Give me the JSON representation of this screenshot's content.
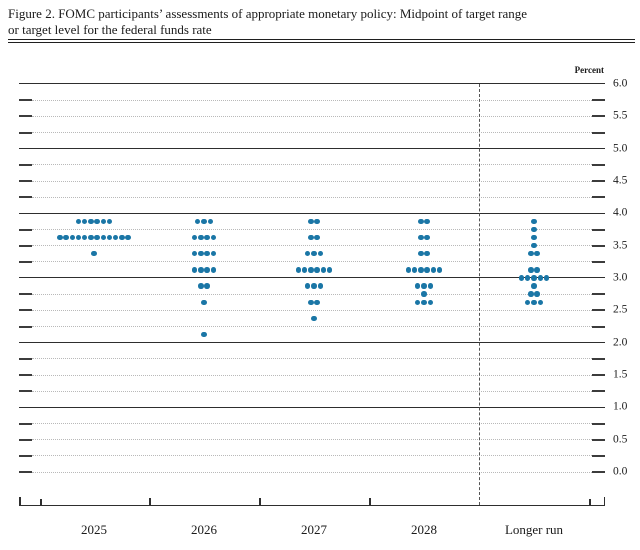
{
  "title": {
    "line1": "Figure 2. FOMC participants’ assessments of appropriate monetary policy: Midpoint of target range",
    "line2": "or target level for the federal funds rate"
  },
  "axis": {
    "unit_label": "Percent",
    "y_tick_labels": [
      "6.0",
      "5.5",
      "5.0",
      "4.5",
      "4.0",
      "3.5",
      "3.0",
      "2.5",
      "2.0",
      "1.5",
      "1.0",
      "0.5",
      "0.0"
    ],
    "x_labels": [
      "2025",
      "2026",
      "2027",
      "2028",
      "Longer run"
    ]
  },
  "colors": {
    "dot": "#1a76a6",
    "major_line": "#2e2e2e",
    "minor_line": "#b9b9b9",
    "edge_tick": "#3c3c3c",
    "separator": "#555555",
    "text": "#1a1a1a"
  },
  "chart_data": {
    "type": "scatter",
    "title": "FOMC participants’ assessments of appropriate monetary policy: Midpoint of target range or target level for the federal funds rate",
    "ylabel": "Percent",
    "ylim": [
      0.0,
      6.0
    ],
    "y_major_step": 1.0,
    "y_minor_step": 0.25,
    "grid": "major solid, minor dotted with edge ticks",
    "legend_position": "none",
    "categories": [
      "2025",
      "2026",
      "2027",
      "2028",
      "Longer run"
    ],
    "series": [
      {
        "name": "2025",
        "dots": [
          {
            "value": 3.875,
            "count": 6
          },
          {
            "value": 3.625,
            "count": 12
          },
          {
            "value": 3.375,
            "count": 1
          }
        ]
      },
      {
        "name": "2026",
        "dots": [
          {
            "value": 3.875,
            "count": 3
          },
          {
            "value": 3.625,
            "count": 4
          },
          {
            "value": 3.375,
            "count": 4
          },
          {
            "value": 3.125,
            "count": 4
          },
          {
            "value": 2.875,
            "count": 2
          },
          {
            "value": 2.625,
            "count": 1
          },
          {
            "value": 2.125,
            "count": 1
          }
        ]
      },
      {
        "name": "2027",
        "dots": [
          {
            "value": 3.875,
            "count": 2
          },
          {
            "value": 3.625,
            "count": 2
          },
          {
            "value": 3.375,
            "count": 3
          },
          {
            "value": 3.125,
            "count": 6
          },
          {
            "value": 2.875,
            "count": 3
          },
          {
            "value": 2.625,
            "count": 2
          },
          {
            "value": 2.375,
            "count": 1
          }
        ]
      },
      {
        "name": "2028",
        "dots": [
          {
            "value": 3.875,
            "count": 2
          },
          {
            "value": 3.625,
            "count": 2
          },
          {
            "value": 3.375,
            "count": 2
          },
          {
            "value": 3.125,
            "count": 6
          },
          {
            "value": 2.875,
            "count": 3
          },
          {
            "value": 2.75,
            "count": 1
          },
          {
            "value": 2.625,
            "count": 3
          }
        ]
      },
      {
        "name": "Longer run",
        "dots": [
          {
            "value": 3.875,
            "count": 1
          },
          {
            "value": 3.75,
            "count": 1
          },
          {
            "value": 3.625,
            "count": 1
          },
          {
            "value": 3.5,
            "count": 1
          },
          {
            "value": 3.375,
            "count": 2
          },
          {
            "value": 3.125,
            "count": 2
          },
          {
            "value": 3.0,
            "count": 5
          },
          {
            "value": 2.875,
            "count": 1
          },
          {
            "value": 2.75,
            "count": 2
          },
          {
            "value": 2.625,
            "count": 3
          }
        ]
      }
    ]
  }
}
